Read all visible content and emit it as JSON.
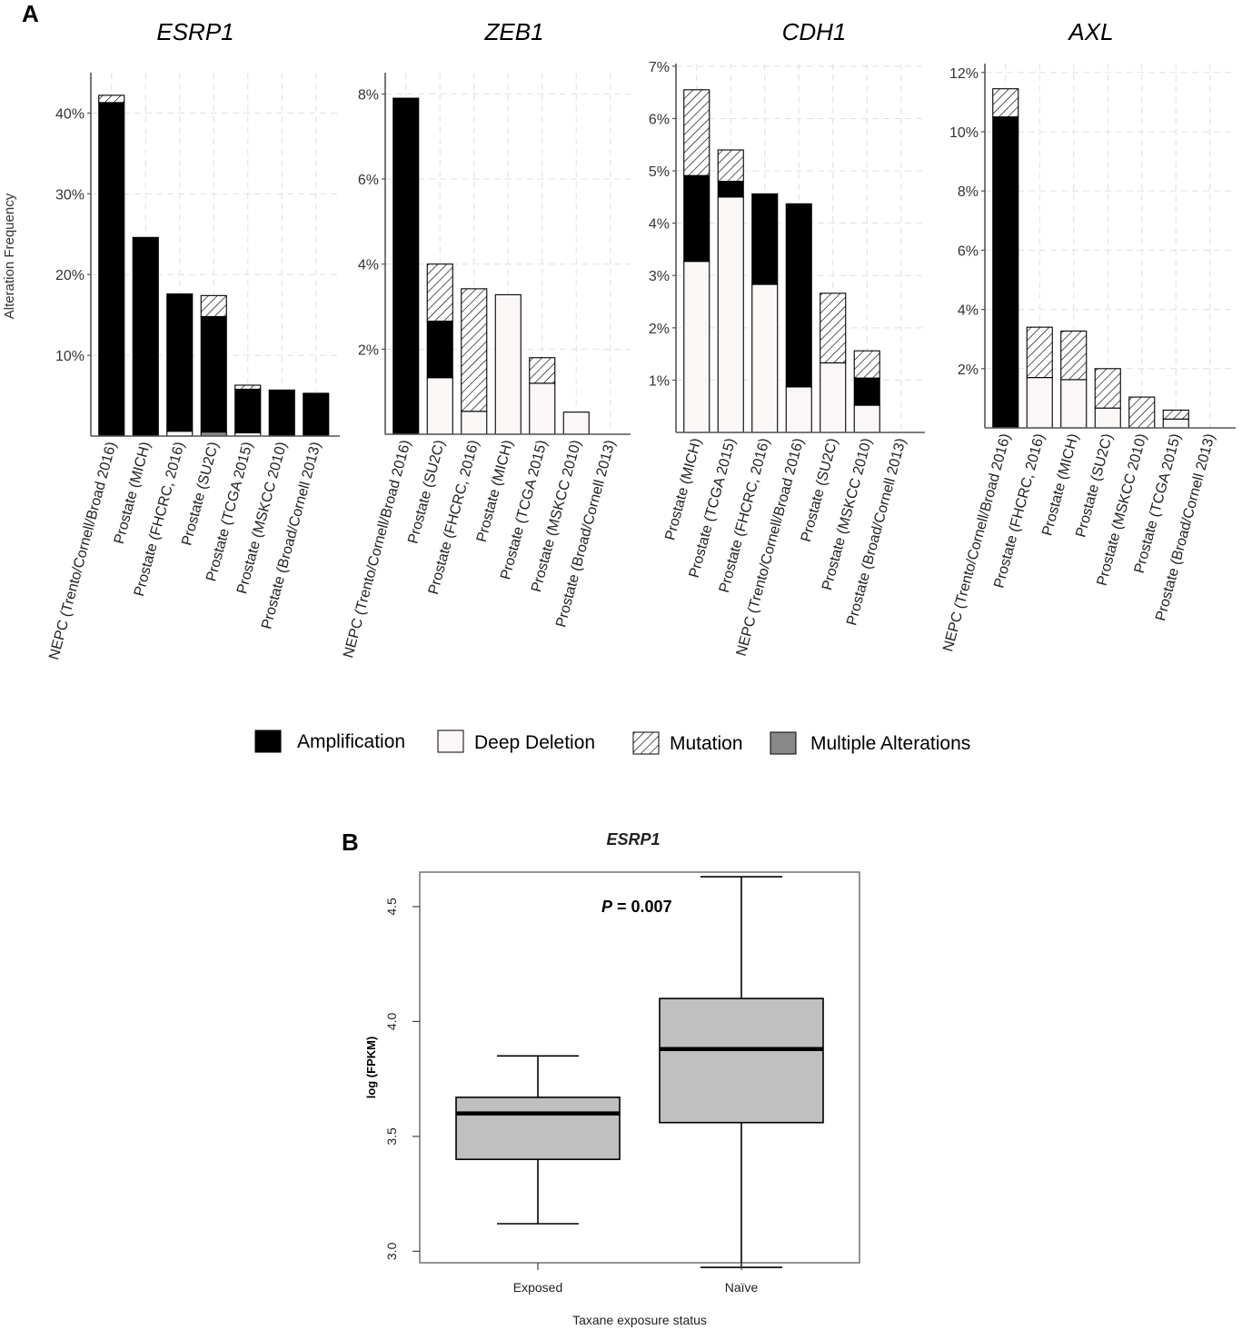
{
  "panel_a_letter": "A",
  "panel_b_letter": "B",
  "colors": {
    "amplification": "#000000",
    "deep_deletion": "#fbf7f7",
    "mutation_hatch": "#000000",
    "multiple": "#888888",
    "axis": "#555555",
    "grid": "#e0e0e0",
    "box_fill": "#c0c0c0"
  },
  "legend": [
    {
      "key": "amp",
      "label": "Amplification"
    },
    {
      "key": "del",
      "label": "Deep Deletion"
    },
    {
      "key": "mut",
      "label": "Mutation"
    },
    {
      "key": "multi",
      "label": "Multiple Alterations"
    }
  ],
  "chart_data": [
    {
      "type": "bar",
      "stacked": true,
      "title": "ESRP1",
      "ylabel": "Alteration Frequency",
      "ylim": [
        0,
        45
      ],
      "yticks": [
        "10%",
        "20%",
        "30%",
        "40%"
      ],
      "ytick_values": [
        10,
        20,
        30,
        40
      ],
      "categories": [
        "NEPC (Trento/Cornell/Broad 2016)",
        "Prostate (MICH)",
        "Prostate (FHCRC, 2016)",
        "Prostate (SU2C)",
        "Prostate (TCGA 2015)",
        "Prostate (MSKCC 2010)",
        "Prostate (Broad/Cornell 2013)"
      ],
      "series": [
        {
          "name": "Deep Deletion",
          "key": "del",
          "values": [
            0,
            0,
            0.6,
            0,
            0.4,
            0,
            0
          ]
        },
        {
          "name": "Multiple Alterations",
          "key": "multi",
          "values": [
            0,
            0,
            0,
            0.5,
            0,
            0,
            0
          ]
        },
        {
          "name": "Amplification",
          "key": "amp",
          "values": [
            41.3,
            24.6,
            17.0,
            14.3,
            5.4,
            5.7,
            5.3
          ]
        },
        {
          "name": "Mutation",
          "key": "mut",
          "values": [
            0.9,
            0,
            0,
            2.6,
            0.5,
            0,
            0
          ]
        }
      ]
    },
    {
      "type": "bar",
      "stacked": true,
      "title": "ZEB1",
      "ylim": [
        0,
        8.5
      ],
      "yticks": [
        "2%",
        "4%",
        "6%",
        "8%"
      ],
      "ytick_values": [
        2,
        4,
        6,
        8
      ],
      "categories": [
        "NEPC (Trento/Cornell/Broad 2016)",
        "Prostate (SU2C)",
        "Prostate (FHCRC, 2016)",
        "Prostate (MICH)",
        "Prostate (TCGA 2015)",
        "Prostate (MSKCC 2010)",
        "Prostate (Broad/Cornell 2013)"
      ],
      "series": [
        {
          "name": "Deep Deletion",
          "key": "del",
          "values": [
            0,
            1.33,
            0.54,
            3.28,
            1.2,
            0.52,
            0
          ]
        },
        {
          "name": "Amplification",
          "key": "amp",
          "values": [
            7.9,
            1.33,
            0,
            0,
            0,
            0,
            0
          ]
        },
        {
          "name": "Mutation",
          "key": "mut",
          "values": [
            0,
            1.34,
            2.88,
            0,
            0.6,
            0,
            0
          ]
        }
      ]
    },
    {
      "type": "bar",
      "stacked": true,
      "title": "CDH1",
      "ylim": [
        0,
        7.05
      ],
      "yticks": [
        "1%",
        "2%",
        "3%",
        "4%",
        "5%",
        "6%",
        "7%"
      ],
      "ytick_values": [
        1,
        2,
        3,
        4,
        5,
        6,
        7
      ],
      "categories": [
        "Prostate (MICH)",
        "Prostate (TCGA 2015)",
        "Prostate (FHCRC, 2016)",
        "NEPC (Trento/Cornell/Broad 2016)",
        "Prostate (SU2C)",
        "Prostate (MSKCC 2010)",
        "Prostate (Broad/Cornell 2013)"
      ],
      "series": [
        {
          "name": "Deep Deletion",
          "key": "del",
          "values": [
            3.27,
            4.5,
            2.83,
            0.87,
            1.33,
            0.52,
            0
          ]
        },
        {
          "name": "Amplification",
          "key": "amp",
          "values": [
            1.64,
            0.3,
            1.73,
            3.5,
            0,
            0.52,
            0
          ]
        },
        {
          "name": "Mutation",
          "key": "mut",
          "values": [
            1.64,
            0.6,
            0,
            0,
            1.33,
            0.52,
            0
          ]
        }
      ]
    },
    {
      "type": "bar",
      "stacked": true,
      "title": "AXL",
      "ylim": [
        0,
        12.3
      ],
      "yticks": [
        "2%",
        "4%",
        "6%",
        "8%",
        "10%",
        "12%"
      ],
      "ytick_values": [
        2,
        4,
        6,
        8,
        10,
        12
      ],
      "categories": [
        "NEPC (Trento/Cornell/Broad 2016)",
        "Prostate (FHCRC, 2016)",
        "Prostate (MICH)",
        "Prostate (SU2C)",
        "Prostate (MSKCC 2010)",
        "Prostate (TCGA 2015)",
        "Prostate (Broad/Cornell 2013)"
      ],
      "series": [
        {
          "name": "Deep Deletion",
          "key": "del",
          "values": [
            0,
            1.7,
            1.63,
            0.67,
            0,
            0.3,
            0
          ]
        },
        {
          "name": "Amplification",
          "key": "amp",
          "values": [
            10.5,
            0,
            0,
            0,
            0,
            0,
            0
          ]
        },
        {
          "name": "Mutation",
          "key": "mut",
          "values": [
            0.95,
            1.7,
            1.64,
            1.33,
            1.04,
            0.3,
            0
          ]
        }
      ]
    },
    {
      "type": "box",
      "title": "ESRP1",
      "annotation": "P = 0.007",
      "annotation_p": "P",
      "annotation_rest": " = 0.007",
      "xlabel": "Taxane exposure status",
      "ylabel": "log (FPKM)",
      "ylim": [
        2.95,
        4.65
      ],
      "yticks": [
        "3.0",
        "3.5",
        "4.0",
        "4.5"
      ],
      "ytick_values": [
        3.0,
        3.5,
        4.0,
        4.5
      ],
      "categories": [
        "Exposed",
        "Naïve"
      ],
      "boxes": [
        {
          "name": "Exposed",
          "whisker_low": 3.12,
          "q1": 3.4,
          "median": 3.6,
          "q3": 3.67,
          "whisker_high": 3.85
        },
        {
          "name": "Naïve",
          "whisker_low": 2.93,
          "q1": 3.56,
          "median": 3.88,
          "q3": 4.1,
          "whisker_high": 4.63
        }
      ]
    }
  ]
}
